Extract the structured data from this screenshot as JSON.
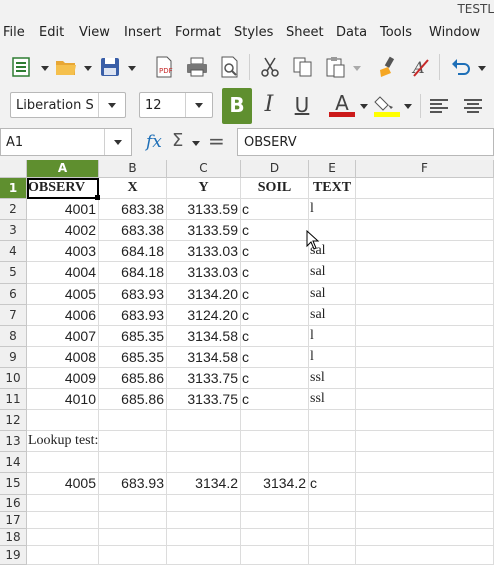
{
  "window": {
    "title": "TESTL"
  },
  "menu": [
    "File",
    "Edit",
    "View",
    "Insert",
    "Format",
    "Styles",
    "Sheet",
    "Data",
    "Tools",
    "Window"
  ],
  "toolbar": {
    "font_name": "Liberation S",
    "font_size": "12",
    "bold_label": "B",
    "italic_label": "I",
    "underline_label": "U",
    "font_color_label": "A",
    "colors": {
      "font_color": "#cc1a1a",
      "highlight": "#ffff00",
      "accent": "#5f8f2f"
    }
  },
  "formula_bar": {
    "name_box": "A1",
    "fx_label": "fx",
    "sigma_label": "Σ",
    "equals_label": "=",
    "content": "OBSERV"
  },
  "sheet": {
    "columns": [
      "A",
      "B",
      "C",
      "D",
      "E",
      "F"
    ],
    "rows": [
      "1",
      "2",
      "3",
      "4",
      "5",
      "6",
      "7",
      "8",
      "9",
      "10",
      "11",
      "12",
      "13",
      "14",
      "15",
      "16",
      "17",
      "18",
      "19"
    ],
    "header": [
      "OBSERV",
      "X",
      "Y",
      "SOIL",
      "TEXT"
    ],
    "data_rows": [
      [
        "4001",
        "683.38",
        "3133.59",
        "c",
        "l"
      ],
      [
        "4002",
        "683.38",
        "3133.59",
        "c",
        ""
      ],
      [
        "4003",
        "684.18",
        "3133.03",
        "c",
        "sal"
      ],
      [
        "4004",
        "684.18",
        "3133.03",
        "c",
        "sal"
      ],
      [
        "4005",
        "683.93",
        "3134.20",
        "c",
        "sal"
      ],
      [
        "4006",
        "683.93",
        "3124.20",
        "c",
        "sal"
      ],
      [
        "4007",
        "685.35",
        "3134.58",
        "c",
        "l"
      ],
      [
        "4008",
        "685.35",
        "3134.58",
        "c",
        "l"
      ],
      [
        "4009",
        "685.86",
        "3133.75",
        "c",
        "ssl"
      ],
      [
        "4010",
        "685.86",
        "3133.75",
        "c",
        "ssl"
      ]
    ],
    "lookup_label": "Lookup test:",
    "lookup_row": [
      "4005",
      "683.93",
      "3134.2",
      "3134.2",
      "c"
    ]
  }
}
